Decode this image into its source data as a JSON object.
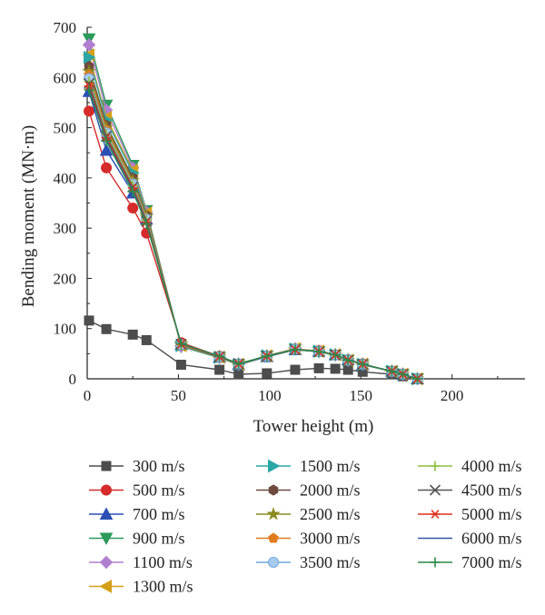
{
  "chart_data": {
    "type": "line",
    "xlabel": "Tower height (m)",
    "ylabel": "Bending moment (MN·m)",
    "xlim": [
      0,
      240
    ],
    "ylim": [
      0,
      700
    ],
    "xticks": [
      0,
      50,
      100,
      150,
      200
    ],
    "yticks": [
      0,
      100,
      200,
      300,
      400,
      500,
      600,
      700
    ],
    "grid": false,
    "legend_position": "bottom",
    "x": [
      1,
      10.5,
      25,
      32.5,
      51.5,
      72.5,
      83,
      98.5,
      114,
      127,
      136,
      143,
      151,
      167,
      173,
      181
    ],
    "series": [
      {
        "name": "300 m/s",
        "color": "#4d4d4d",
        "marker": "square",
        "values": [
          116,
          99,
          88,
          77,
          28,
          18,
          9,
          11,
          18,
          21,
          20,
          18,
          14,
          9,
          5,
          0
        ]
      },
      {
        "name": "500 m/s",
        "color": "#d62b2b",
        "marker": "circle",
        "values": [
          533,
          420,
          340,
          290,
          72,
          45,
          30,
          44,
          58,
          56,
          48,
          38,
          30,
          14,
          10,
          0
        ]
      },
      {
        "name": "700 m/s",
        "color": "#2b4fb5",
        "marker": "triangle-up",
        "values": [
          572,
          455,
          370,
          318,
          68,
          43,
          28,
          44,
          58,
          55,
          48,
          38,
          28,
          15,
          9,
          0
        ]
      },
      {
        "name": "900 m/s",
        "color": "#2a9a5a",
        "marker": "triangle-down",
        "values": [
          677,
          545,
          425,
          335,
          64,
          42,
          28,
          45,
          59,
          54,
          47,
          37,
          28,
          15,
          9,
          0
        ]
      },
      {
        "name": "1100 m/s",
        "color": "#b07fd0",
        "marker": "diamond",
        "values": [
          665,
          535,
          420,
          332,
          65,
          43,
          29,
          46,
          60,
          55,
          48,
          37,
          29,
          15,
          9,
          0
        ]
      },
      {
        "name": "1300 m/s",
        "color": "#d4a017",
        "marker": "triangle-left",
        "values": [
          645,
          520,
          415,
          330,
          66,
          43,
          29,
          46,
          60,
          55,
          48,
          37,
          29,
          15,
          9,
          0
        ]
      },
      {
        "name": "1500 m/s",
        "color": "#2aa6a6",
        "marker": "triangle-right",
        "values": [
          640,
          515,
          410,
          328,
          66,
          43,
          29,
          46,
          59,
          55,
          48,
          37,
          29,
          15,
          9,
          0
        ]
      },
      {
        "name": "2000 m/s",
        "color": "#6e4a3f",
        "marker": "hexagon",
        "values": [
          622,
          505,
          400,
          325,
          67,
          44,
          29,
          45,
          59,
          54,
          48,
          37,
          29,
          15,
          9,
          0
        ]
      },
      {
        "name": "2500 m/s",
        "color": "#8a8a1e",
        "marker": "star",
        "values": [
          612,
          500,
          395,
          323,
          67,
          44,
          29,
          45,
          59,
          54,
          48,
          37,
          29,
          15,
          9,
          0
        ]
      },
      {
        "name": "3000 m/s",
        "color": "#e07b1e",
        "marker": "pentagon",
        "values": [
          605,
          495,
          390,
          320,
          68,
          44,
          30,
          45,
          59,
          54,
          48,
          37,
          29,
          15,
          9,
          0
        ]
      },
      {
        "name": "3500 m/s",
        "color": "#6fa8dc",
        "marker": "sphere",
        "values": [
          598,
          490,
          388,
          318,
          68,
          44,
          30,
          45,
          59,
          54,
          48,
          37,
          29,
          15,
          9,
          0
        ]
      },
      {
        "name": "4000 m/s",
        "color": "#8cbf3f",
        "marker": "plus",
        "values": [
          592,
          487,
          385,
          316,
          68,
          44,
          30,
          45,
          58,
          54,
          48,
          37,
          29,
          15,
          9,
          0
        ]
      },
      {
        "name": "4500 m/s",
        "color": "#555555",
        "marker": "cross",
        "values": [
          588,
          483,
          382,
          314,
          69,
          44,
          30,
          45,
          58,
          54,
          48,
          37,
          29,
          15,
          9,
          0
        ]
      },
      {
        "name": "5000 m/s",
        "color": "#e0301e",
        "marker": "asterisk",
        "values": [
          583,
          480,
          380,
          312,
          69,
          44,
          30,
          45,
          58,
          54,
          48,
          37,
          29,
          15,
          9,
          0
        ]
      },
      {
        "name": "6000 m/s",
        "color": "#3355aa",
        "marker": "none",
        "values": [
          578,
          476,
          376,
          310,
          70,
          45,
          30,
          45,
          58,
          54,
          48,
          37,
          29,
          15,
          9,
          0
        ]
      },
      {
        "name": "7000 m/s",
        "color": "#2a8a4a",
        "marker": "plus",
        "values": [
          575,
          473,
          373,
          308,
          70,
          45,
          30,
          45,
          58,
          54,
          48,
          37,
          29,
          15,
          9,
          0
        ]
      }
    ]
  }
}
